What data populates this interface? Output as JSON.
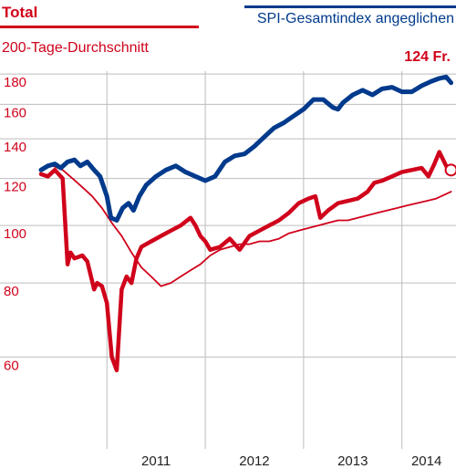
{
  "legend": {
    "left_title": "Total",
    "left_subtitle": "200-Tage-Durchschnitt",
    "right_label": "SPI-Gesamtindex angeglichen",
    "last_value": "124 Fr."
  },
  "colors": {
    "total": "#d0021b",
    "spi": "#003a8c",
    "ma": "#d0021b",
    "grid": "#bdbdbd"
  },
  "chart_data": {
    "type": "line",
    "log_scale": true,
    "ylim": [
      42,
      182
    ],
    "xlim": [
      2010.33,
      2014.55
    ],
    "yticks": [
      60,
      80,
      100,
      120,
      140,
      160,
      180
    ],
    "ytick_labels": [
      "60",
      "80",
      "100",
      "120",
      "140",
      "160",
      "180"
    ],
    "x_gridlines": [
      2011.0,
      2012.0,
      2013.0,
      2014.0
    ],
    "xtick_labels": [
      {
        "label": "2011",
        "pos": 2011.5
      },
      {
        "label": "2012",
        "pos": 2012.5
      },
      {
        "label": "2013",
        "pos": 2013.5
      },
      {
        "label": "2014",
        "pos": 2014.25
      }
    ],
    "grid": true,
    "series": [
      {
        "name": "SPI-Gesamtindex angeglichen",
        "x": [
          2010.33,
          2010.4,
          2010.47,
          2010.53,
          2010.6,
          2010.67,
          2010.73,
          2010.8,
          2010.87,
          2010.93,
          2011.0,
          2011.04,
          2011.1,
          2011.16,
          2011.22,
          2011.27,
          2011.33,
          2011.4,
          2011.5,
          2011.6,
          2011.7,
          2011.8,
          2011.9,
          2012.0,
          2012.1,
          2012.2,
          2012.3,
          2012.4,
          2012.5,
          2012.6,
          2012.7,
          2012.8,
          2012.9,
          2013.0,
          2013.1,
          2013.2,
          2013.3,
          2013.35,
          2013.4,
          2013.5,
          2013.6,
          2013.7,
          2013.8,
          2013.9,
          2014.0,
          2014.1,
          2014.2,
          2014.3,
          2014.38,
          2014.45,
          2014.5
        ],
        "values": [
          124,
          126,
          127,
          125,
          128,
          129,
          126,
          128,
          124,
          121,
          112,
          103,
          102,
          107,
          109,
          106,
          112,
          117,
          121,
          124,
          126,
          123,
          121,
          119,
          121,
          128,
          131,
          132,
          136,
          141,
          146,
          149,
          153,
          157,
          163,
          163,
          158,
          157,
          161,
          166,
          169,
          166,
          170,
          171,
          168,
          168,
          172,
          175,
          177,
          178,
          174
        ]
      },
      {
        "name": "Total",
        "x": [
          2010.33,
          2010.4,
          2010.47,
          2010.55,
          2010.6,
          2010.63,
          2010.67,
          2010.75,
          2010.8,
          2010.87,
          2010.9,
          2010.95,
          2011.0,
          2011.05,
          2011.1,
          2011.15,
          2011.2,
          2011.25,
          2011.3,
          2011.35,
          2011.45,
          2011.55,
          2011.65,
          2011.75,
          2011.85,
          2011.9,
          2011.95,
          2012.0,
          2012.05,
          2012.15,
          2012.25,
          2012.35,
          2012.45,
          2012.55,
          2012.65,
          2012.75,
          2012.85,
          2012.95,
          2013.05,
          2013.12,
          2013.17,
          2013.25,
          2013.35,
          2013.45,
          2013.55,
          2013.65,
          2013.72,
          2013.8,
          2013.9,
          2014.0,
          2014.1,
          2014.2,
          2014.27,
          2014.33,
          2014.38,
          2014.42,
          2014.47,
          2014.5
        ],
        "values": [
          122,
          121,
          124,
          120,
          86,
          90,
          88,
          89,
          87,
          78,
          80,
          79,
          74,
          60,
          57,
          78,
          82,
          80,
          88,
          92,
          94,
          96,
          98,
          100,
          103,
          100,
          96,
          94,
          91,
          92,
          95,
          91,
          96,
          98,
          100,
          102,
          105,
          109,
          111,
          112,
          103,
          106,
          109,
          110,
          111,
          114,
          118,
          119,
          121,
          123,
          124,
          125,
          121,
          127,
          133,
          129,
          124,
          124
        ]
      },
      {
        "name": "200-Tage-Durchschnitt",
        "x": [
          2010.45,
          2010.55,
          2010.65,
          2010.75,
          2010.85,
          2010.95,
          2011.05,
          2011.15,
          2011.25,
          2011.35,
          2011.45,
          2011.55,
          2011.65,
          2011.75,
          2011.85,
          2011.95,
          2012.05,
          2012.15,
          2012.25,
          2012.35,
          2012.45,
          2012.55,
          2012.65,
          2012.75,
          2012.85,
          2012.95,
          2013.05,
          2013.15,
          2013.25,
          2013.35,
          2013.45,
          2013.55,
          2013.65,
          2013.75,
          2013.85,
          2013.95,
          2014.05,
          2014.15,
          2014.25,
          2014.35,
          2014.45,
          2014.5
        ],
        "values": [
          126,
          124,
          120,
          116,
          112,
          107,
          101,
          96,
          90,
          85,
          82,
          79,
          80,
          82,
          84,
          86,
          89,
          91,
          92,
          93,
          93,
          94,
          94,
          95,
          97,
          98,
          99,
          100,
          101,
          102,
          102,
          103,
          104,
          105,
          106,
          107,
          108,
          109,
          110,
          111,
          113,
          114
        ]
      }
    ]
  }
}
